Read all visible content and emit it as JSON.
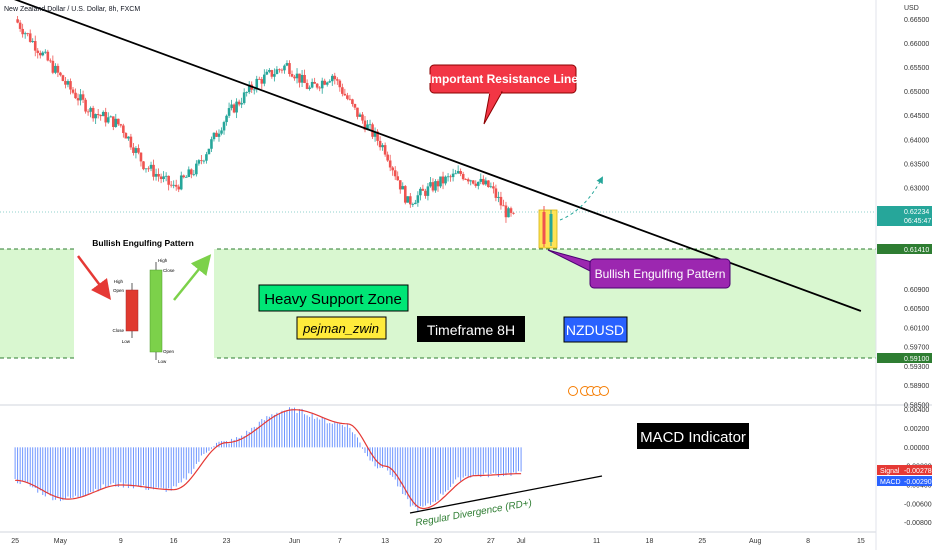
{
  "header": {
    "title": "New Zealand Dollar / U.S. Dollar, 8h, FXCM"
  },
  "price_axis": {
    "currency": "USD",
    "ticks": [
      "0.66500",
      "0.66000",
      "0.65500",
      "0.65000",
      "0.64500",
      "0.64000",
      "0.63500",
      "0.63000",
      "0.62500",
      "0.61700",
      "0.60900",
      "0.60500",
      "0.60100",
      "0.59700",
      "0.59300",
      "0.58900",
      "0.58500"
    ],
    "last_price": "0.62234",
    "countdown": "06:45:47",
    "zone_top": "0.61410",
    "zone_bottom": "0.59100"
  },
  "macd_axis": {
    "ticks": [
      "0.00400",
      "0.00200",
      "0.00000",
      "-0.00200",
      "-0.00400",
      "-0.00600",
      "-0.00800"
    ],
    "signal_label": "Signal",
    "signal_value": "-0.00278",
    "macd_label": "MACD",
    "macd_value": "-0.00290"
  },
  "time_axis": {
    "ticks": [
      "25",
      "May",
      "9",
      "16",
      "23",
      "Jun",
      "7",
      "13",
      "20",
      "27",
      "Jul",
      "11",
      "18",
      "25",
      "Aug",
      "8",
      "15"
    ]
  },
  "annotations": {
    "resistance": "Important Resistance Line",
    "engulfing": "Bullish Engulfing Pattern",
    "support_zone": "Heavy Support Zone",
    "author": "pejman_zwin",
    "timeframe": "Timeframe 8H",
    "symbol": "NZDUSD",
    "macd_indicator": "MACD Indicator",
    "divergence": "Regular Divergence (RD+)"
  },
  "inset": {
    "title": "Bullish Engulfing Pattern",
    "red_labels": [
      "High",
      "Open",
      "Close",
      "Low"
    ],
    "green_labels": [
      "High",
      "Close",
      "Open",
      "Low"
    ]
  },
  "colors": {
    "bull": "#26a69a",
    "bear": "#ef5350",
    "zone": "#d9f7d0",
    "resistance_box": "#f23645",
    "engulfing_box": "#9c27b0",
    "support_box": "#00e676",
    "author_box": "#ffeb3b",
    "symbol_box": "#2962ff",
    "histogram": "#2962ff",
    "signal_line": "#e53935"
  },
  "chart_data": {
    "type": "candlestick",
    "symbol": "NZDUSD",
    "timeframe": "8h",
    "close_path": [
      {
        "date": "2022-04-25",
        "close": 0.665
      },
      {
        "date": "2022-04-28",
        "close": 0.659
      },
      {
        "date": "2022-05-02",
        "close": 0.651
      },
      {
        "date": "2022-05-05",
        "close": 0.646
      },
      {
        "date": "2022-05-09",
        "close": 0.643
      },
      {
        "date": "2022-05-12",
        "close": 0.635
      },
      {
        "date": "2022-05-16",
        "close": 0.63
      },
      {
        "date": "2022-05-19",
        "close": 0.634
      },
      {
        "date": "2022-05-23",
        "close": 0.645
      },
      {
        "date": "2022-05-27",
        "close": 0.652
      },
      {
        "date": "2022-05-31",
        "close": 0.6555
      },
      {
        "date": "2022-06-03",
        "close": 0.6505
      },
      {
        "date": "2022-06-06",
        "close": 0.6535
      },
      {
        "date": "2022-06-09",
        "close": 0.646
      },
      {
        "date": "2022-06-13",
        "close": 0.638
      },
      {
        "date": "2022-06-16",
        "close": 0.627
      },
      {
        "date": "2022-06-20",
        "close": 0.631
      },
      {
        "date": "2022-06-23",
        "close": 0.633
      },
      {
        "date": "2022-06-27",
        "close": 0.63
      },
      {
        "date": "2022-06-29",
        "close": 0.625
      },
      {
        "date": "2022-07-01",
        "close": 0.6223
      }
    ],
    "last_price": 0.62234,
    "support_zone": [
      0.591,
      0.6141
    ],
    "resistance_line": [
      {
        "date": "2022-04-20",
        "price": 0.672
      },
      {
        "date": "2022-08-15",
        "price": 0.6045
      }
    ],
    "macd": {
      "macd_last": -0.0029,
      "signal_last": -0.00278,
      "signal_path": [
        {
          "date": "2022-04-25",
          "value": -0.0035
        },
        {
          "date": "2022-05-02",
          "value": -0.0055
        },
        {
          "date": "2022-05-09",
          "value": -0.004
        },
        {
          "date": "2022-05-16",
          "value": -0.0045
        },
        {
          "date": "2022-05-23",
          "value": 0.0005
        },
        {
          "date": "2022-06-01",
          "value": 0.004
        },
        {
          "date": "2022-06-08",
          "value": 0.0025
        },
        {
          "date": "2022-06-13",
          "value": -0.002
        },
        {
          "date": "2022-06-18",
          "value": -0.0065
        },
        {
          "date": "2022-06-25",
          "value": -0.003
        },
        {
          "date": "2022-07-01",
          "value": -0.0028
        }
      ]
    },
    "ylim": [
      0.585,
      0.669
    ],
    "macd_ylim": [
      -0.009,
      0.0045
    ]
  }
}
